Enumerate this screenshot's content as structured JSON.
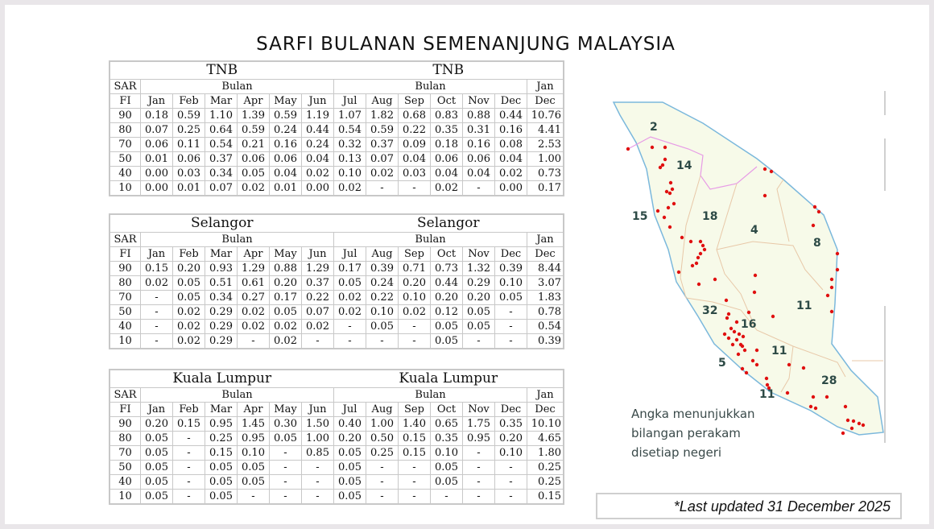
{
  "title": "SARFI BULANAN SEMENANJUNG MALAYSIA",
  "headers": {
    "sarfi_top": "SAR",
    "sarfi_bottom": "FI",
    "bulan": "Bulan",
    "total_top": "Jan",
    "total_bottom": "Dec",
    "months": [
      "Jan",
      "Feb",
      "Mar",
      "Apr",
      "May",
      "Jun",
      "Jul",
      "Aug",
      "Sep",
      "Oct",
      "Nov",
      "Dec"
    ]
  },
  "tables": [
    {
      "region": "TNB",
      "rows": [
        {
          "sarfi": "90",
          "values": [
            "0.18",
            "0.59",
            "1.10",
            "1.39",
            "0.59",
            "1.19",
            "1.07",
            "1.82",
            "0.68",
            "0.83",
            "0.88",
            "0.44"
          ],
          "total": "10.76"
        },
        {
          "sarfi": "80",
          "values": [
            "0.07",
            "0.25",
            "0.64",
            "0.59",
            "0.24",
            "0.44",
            "0.54",
            "0.59",
            "0.22",
            "0.35",
            "0.31",
            "0.16"
          ],
          "total": "4.41"
        },
        {
          "sarfi": "70",
          "values": [
            "0.06",
            "0.11",
            "0.54",
            "0.21",
            "0.16",
            "0.24",
            "0.32",
            "0.37",
            "0.09",
            "0.18",
            "0.16",
            "0.08"
          ],
          "total": "2.53"
        },
        {
          "sarfi": "50",
          "values": [
            "0.01",
            "0.06",
            "0.37",
            "0.06",
            "0.06",
            "0.04",
            "0.13",
            "0.07",
            "0.04",
            "0.06",
            "0.06",
            "0.04"
          ],
          "total": "1.00"
        },
        {
          "sarfi": "40",
          "values": [
            "0.00",
            "0.03",
            "0.34",
            "0.05",
            "0.04",
            "0.02",
            "0.10",
            "0.02",
            "0.03",
            "0.04",
            "0.04",
            "0.02"
          ],
          "total": "0.73"
        },
        {
          "sarfi": "10",
          "values": [
            "0.00",
            "0.01",
            "0.07",
            "0.02",
            "0.01",
            "0.00",
            "0.02",
            "-",
            "-",
            "0.02",
            "-",
            "0.00"
          ],
          "total": "0.17"
        }
      ]
    },
    {
      "region": "Selangor",
      "rows": [
        {
          "sarfi": "90",
          "values": [
            "0.15",
            "0.20",
            "0.93",
            "1.29",
            "0.88",
            "1.29",
            "0.17",
            "0.39",
            "0.71",
            "0.73",
            "1.32",
            "0.39"
          ],
          "total": "8.44"
        },
        {
          "sarfi": "80",
          "values": [
            "0.02",
            "0.05",
            "0.51",
            "0.61",
            "0.20",
            "0.37",
            "0.05",
            "0.24",
            "0.20",
            "0.44",
            "0.29",
            "0.10"
          ],
          "total": "3.07"
        },
        {
          "sarfi": "70",
          "values": [
            "-",
            "0.05",
            "0.34",
            "0.27",
            "0.17",
            "0.22",
            "0.02",
            "0.22",
            "0.10",
            "0.20",
            "0.20",
            "0.05"
          ],
          "total": "1.83"
        },
        {
          "sarfi": "50",
          "values": [
            "-",
            "0.02",
            "0.29",
            "0.02",
            "0.05",
            "0.07",
            "0.02",
            "0.10",
            "0.02",
            "0.12",
            "0.05",
            "-"
          ],
          "total": "0.78"
        },
        {
          "sarfi": "40",
          "values": [
            "-",
            "0.02",
            "0.29",
            "0.02",
            "0.02",
            "0.02",
            "-",
            "0.05",
            "-",
            "0.05",
            "0.05",
            "-"
          ],
          "total": "0.54"
        },
        {
          "sarfi": "10",
          "values": [
            "-",
            "0.02",
            "0.29",
            "-",
            "0.02",
            "-",
            "-",
            "-",
            "-",
            "0.05",
            "-",
            "-"
          ],
          "total": "0.39"
        }
      ]
    },
    {
      "region": "Kuala Lumpur",
      "rows": [
        {
          "sarfi": "90",
          "values": [
            "0.20",
            "0.15",
            "0.95",
            "1.45",
            "0.30",
            "1.50",
            "0.40",
            "1.00",
            "1.40",
            "0.65",
            "1.75",
            "0.35"
          ],
          "total": "10.10"
        },
        {
          "sarfi": "80",
          "values": [
            "0.05",
            "-",
            "0.25",
            "0.95",
            "0.05",
            "1.00",
            "0.20",
            "0.50",
            "0.15",
            "0.35",
            "0.95",
            "0.20"
          ],
          "total": "4.65"
        },
        {
          "sarfi": "70",
          "values": [
            "0.05",
            "-",
            "0.15",
            "0.10",
            "-",
            "0.85",
            "0.05",
            "0.25",
            "0.15",
            "0.10",
            "-",
            "0.10"
          ],
          "total": "1.80"
        },
        {
          "sarfi": "50",
          "values": [
            "0.05",
            "-",
            "0.05",
            "0.05",
            "-",
            "-",
            "0.05",
            "-",
            "-",
            "0.05",
            "-",
            "-"
          ],
          "total": "0.25"
        },
        {
          "sarfi": "40",
          "values": [
            "0.05",
            "-",
            "0.05",
            "0.05",
            "-",
            "-",
            "0.05",
            "-",
            "-",
            "0.05",
            "-",
            "-"
          ],
          "total": "0.25"
        },
        {
          "sarfi": "10",
          "values": [
            "0.05",
            "-",
            "0.05",
            "-",
            "-",
            "-",
            "0.05",
            "-",
            "-",
            "-",
            "-",
            "-"
          ],
          "total": "0.15"
        }
      ]
    }
  ],
  "map": {
    "labels": [
      "2",
      "14",
      "15",
      "18",
      "4",
      "8",
      "11",
      "32",
      "16",
      "11",
      "5",
      "11",
      "28"
    ],
    "note": [
      "Angka menunjukkan",
      "bilangan perakam",
      "disetiap negeri"
    ],
    "dot_color": "#e01010"
  },
  "updated": "*Last updated 31 December 2025"
}
